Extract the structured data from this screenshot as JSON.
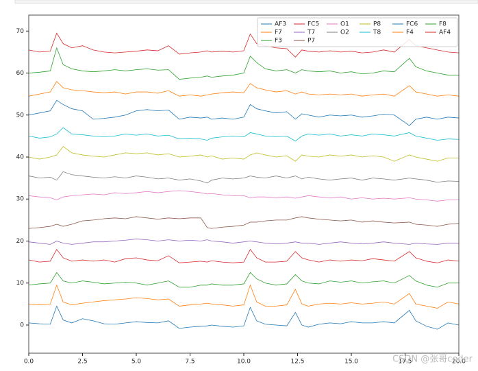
{
  "chart_data": {
    "type": "line",
    "x": [
      0,
      0.5,
      1,
      1.3,
      1.6,
      2,
      2.5,
      3,
      3.5,
      4,
      4.5,
      5,
      5.5,
      6,
      6.5,
      7,
      7.5,
      8,
      8.3,
      8.5,
      9,
      9.5,
      10,
      10.3,
      10.6,
      11,
      11.5,
      12,
      12.4,
      12.7,
      13,
      13.5,
      14,
      14.5,
      15,
      15.5,
      16,
      16.5,
      17,
      17.7,
      18,
      18.5,
      19,
      19.5,
      20
    ],
    "xlim": [
      0,
      20
    ],
    "ylim": [
      -6.7,
      73.8
    ],
    "xticks": [
      {
        "value": 0,
        "label": "0.0"
      },
      {
        "value": 2.5,
        "label": "2.5"
      },
      {
        "value": 5,
        "label": "5.0"
      },
      {
        "value": 7.5,
        "label": "7.5"
      },
      {
        "value": 10,
        "label": "10.0"
      },
      {
        "value": 12.5,
        "label": "12.5"
      },
      {
        "value": 15,
        "label": "15.0"
      },
      {
        "value": 17.5,
        "label": "17.5"
      },
      {
        "value": 20,
        "label": "20.0"
      }
    ],
    "yticks": [
      0,
      10,
      20,
      30,
      40,
      50,
      60,
      70
    ],
    "legend": "upper right",
    "series": [
      {
        "name": "AF3",
        "color": "#1f77b4",
        "values": [
          0.5,
          0.3,
          0.2,
          4.5,
          1.2,
          0.5,
          1.5,
          1.0,
          0.3,
          0.2,
          0.5,
          0.8,
          0.6,
          0.5,
          1.0,
          -0.8,
          -0.5,
          -0.3,
          -0.2,
          0.0,
          -0.3,
          -0.5,
          -0.2,
          4.2,
          1.0,
          0.2,
          0.0,
          -0.2,
          3.0,
          0.0,
          -0.5,
          0.2,
          0.5,
          0.3,
          0.8,
          0.5,
          0.5,
          0.8,
          0.5,
          3.5,
          1.0,
          -0.3,
          -1.0,
          0.5,
          0.0
        ]
      },
      {
        "name": "F7",
        "color": "#ff7f0e",
        "values": [
          5,
          4.8,
          5,
          9.5,
          5.5,
          4.8,
          5.2,
          5.5,
          5.8,
          6.0,
          6.2,
          6.5,
          6.3,
          6.0,
          6.2,
          4.5,
          4.8,
          5.0,
          5.2,
          5.0,
          4.8,
          4.5,
          4.8,
          9.5,
          5.5,
          4.5,
          4.5,
          4.8,
          8.5,
          5.0,
          4.5,
          5.0,
          5.2,
          5.0,
          5.3,
          5.0,
          5.2,
          5.5,
          5.0,
          7.5,
          5.0,
          4.5,
          4.0,
          5.5,
          5.0
        ]
      },
      {
        "name": "F3",
        "color": "#2ca02c",
        "values": [
          9.5,
          9.8,
          10,
          12.5,
          10.5,
          10,
          10.5,
          10.2,
          9.8,
          10,
          10.2,
          10,
          9.5,
          10,
          10.5,
          9.0,
          9.0,
          9.5,
          9.5,
          9.8,
          9.5,
          9.5,
          9.8,
          12.5,
          11,
          10,
          9.5,
          9.8,
          12,
          10.5,
          10,
          9.8,
          10.5,
          10.2,
          10.5,
          10,
          10.3,
          10.5,
          10,
          11.8,
          10.5,
          9.5,
          9,
          10,
          10
        ]
      },
      {
        "name": "FC5",
        "color": "#d62728",
        "values": [
          15.5,
          15.0,
          15.2,
          18.0,
          16.0,
          15.2,
          15.5,
          15.2,
          15.5,
          15.0,
          15.8,
          16.0,
          15.5,
          15.3,
          16.5,
          14.8,
          15.0,
          15.2,
          15.0,
          15.3,
          15.0,
          14.8,
          15.0,
          18.0,
          16.0,
          15.0,
          15.0,
          15.2,
          17.5,
          16.0,
          15.5,
          15.0,
          15.5,
          15.2,
          15.5,
          15.3,
          15.8,
          15.5,
          15.2,
          17.5,
          16.0,
          15.2,
          14.8,
          15.5,
          15.2
        ]
      },
      {
        "name": "T7",
        "color": "#9467bd",
        "values": [
          19.8,
          19.5,
          19.2,
          20.0,
          19.5,
          19.2,
          19.5,
          19.8,
          19.8,
          20.0,
          20.2,
          20.5,
          20.3,
          20.0,
          20.3,
          20.0,
          20.2,
          20.0,
          20.3,
          20.0,
          19.8,
          19.5,
          19.8,
          20.0,
          19.8,
          19.5,
          19.3,
          19.5,
          19.8,
          19.5,
          19.5,
          19.2,
          19.5,
          19.8,
          19.5,
          19.3,
          19.5,
          19.8,
          19.5,
          19.2,
          19.5,
          19.3,
          19.2,
          19.5,
          19.5
        ]
      },
      {
        "name": "P7",
        "color": "#8c564b",
        "values": [
          23.0,
          23.2,
          23.5,
          24.0,
          23.5,
          24.0,
          24.8,
          25.0,
          25.3,
          25.5,
          25.3,
          25.8,
          25.5,
          25.2,
          25.5,
          25.3,
          25.5,
          25.5,
          23.2,
          23.0,
          23.3,
          23.5,
          23.8,
          24.5,
          24.5,
          24.8,
          25.0,
          25.0,
          25.5,
          25.8,
          25.5,
          25.2,
          25.0,
          24.8,
          25.0,
          24.5,
          24.8,
          24.5,
          24.3,
          24.5,
          24.0,
          23.8,
          23.5,
          24.0,
          24.2
        ]
      },
      {
        "name": "O1",
        "color": "#e377c2",
        "values": [
          30.8,
          30.5,
          30.3,
          29.8,
          30.5,
          30.8,
          31.0,
          31.2,
          31.0,
          31.5,
          31.3,
          31.5,
          31.8,
          31.5,
          31.8,
          32.0,
          31.8,
          31.5,
          31.2,
          31.3,
          31.0,
          30.8,
          30.8,
          30.3,
          30.5,
          30.5,
          30.3,
          30.5,
          30.2,
          30.5,
          30.8,
          30.5,
          30.3,
          30.5,
          30.0,
          30.3,
          30.0,
          30.2,
          30.0,
          30.3,
          30.0,
          29.8,
          29.5,
          29.8,
          29.8
        ]
      },
      {
        "name": "O2",
        "color": "#7f7f7f",
        "values": [
          35.5,
          35.0,
          35.2,
          34.5,
          36.5,
          35.8,
          35.5,
          35.2,
          35.0,
          35.3,
          35.0,
          35.5,
          35.2,
          34.8,
          35.0,
          34.5,
          34.8,
          34.3,
          33.8,
          34.5,
          35.0,
          34.8,
          35.0,
          35.5,
          35.2,
          35.0,
          35.5,
          35.0,
          35.5,
          34.8,
          35.2,
          34.8,
          34.5,
          34.8,
          35.0,
          34.5,
          35.0,
          34.8,
          34.5,
          35.0,
          34.8,
          34.5,
          34.0,
          34.3,
          34.2
        ]
      },
      {
        "name": "P8",
        "color": "#bcbd22",
        "values": [
          40,
          39.5,
          40,
          40.5,
          42.5,
          41.0,
          40.5,
          40.2,
          40.0,
          40.5,
          41.0,
          40.8,
          41.0,
          40.5,
          40.8,
          40.0,
          40.2,
          40.5,
          40.0,
          40.3,
          39.5,
          39.8,
          39.5,
          40.5,
          41.0,
          40.5,
          40.0,
          40.3,
          39.0,
          40.5,
          40.2,
          40.0,
          40.5,
          40.2,
          40.5,
          40.0,
          40.3,
          40.0,
          39.0,
          40.5,
          40.0,
          39.5,
          39.0,
          39.8,
          39.8
        ]
      },
      {
        "name": "T8",
        "color": "#17becf",
        "values": [
          45.0,
          44.5,
          44.8,
          45.5,
          47.0,
          45.5,
          45.3,
          45.0,
          44.8,
          45.0,
          45.5,
          45.2,
          45.5,
          45.0,
          45.2,
          44.3,
          44.5,
          44.3,
          44.0,
          44.5,
          44.8,
          45.0,
          44.8,
          45.8,
          45.5,
          45.0,
          44.8,
          45.0,
          43.8,
          45.0,
          45.5,
          45.2,
          45.5,
          45.0,
          45.3,
          45.0,
          45.5,
          45.3,
          45.0,
          45.8,
          45.0,
          44.5,
          44.0,
          44.3,
          44.2
        ]
      },
      {
        "name": "FC6",
        "color": "#1f77b4",
        "values": [
          50.0,
          50.5,
          51.0,
          53.5,
          52.5,
          51.5,
          51.0,
          49.0,
          49.2,
          49.5,
          50.0,
          51.0,
          51.3,
          51.0,
          51.2,
          49.0,
          49.5,
          49.3,
          49.5,
          49.0,
          49.3,
          49.0,
          49.5,
          52.5,
          51.5,
          51.0,
          50.5,
          50.8,
          49.0,
          50.3,
          50.0,
          49.5,
          50.0,
          49.8,
          50.0,
          49.5,
          49.8,
          50.2,
          50.0,
          47.5,
          49.0,
          49.5,
          49.0,
          49.5,
          49.3
        ]
      },
      {
        "name": "F4",
        "color": "#ff7f0e",
        "values": [
          54.5,
          55.0,
          55.5,
          58.0,
          56.5,
          56.0,
          55.8,
          55.5,
          55.3,
          55.5,
          55.0,
          55.5,
          55.5,
          55.2,
          55.8,
          54.5,
          54.8,
          54.5,
          54.8,
          55.0,
          55.3,
          55.5,
          55.3,
          57.5,
          56.5,
          56.0,
          55.5,
          55.8,
          55.0,
          55.5,
          55.0,
          54.8,
          55.0,
          54.8,
          55.0,
          54.5,
          54.8,
          55.0,
          54.5,
          57.0,
          55.5,
          55.0,
          54.5,
          54.8,
          54.5
        ]
      },
      {
        "name": "F8",
        "color": "#2ca02c",
        "values": [
          60.0,
          60.2,
          60.5,
          66.0,
          62.0,
          61.0,
          60.5,
          60.3,
          60.5,
          60.8,
          60.5,
          60.8,
          61.0,
          60.7,
          60.8,
          58.5,
          58.8,
          59.0,
          59.3,
          59.0,
          59.3,
          59.5,
          60.0,
          64.0,
          62.5,
          61.0,
          60.5,
          60.8,
          60.0,
          60.8,
          60.5,
          60.3,
          60.5,
          60.0,
          60.3,
          59.8,
          60.0,
          60.5,
          60.3,
          63.5,
          61.5,
          60.5,
          60.0,
          59.5,
          59.5
        ]
      },
      {
        "name": "AF4",
        "color": "#d62728",
        "values": [
          65.5,
          65.0,
          65.2,
          69.5,
          67.0,
          66.0,
          66.5,
          65.5,
          65.0,
          64.8,
          65.0,
          65.2,
          65.5,
          65.3,
          66.5,
          64.5,
          64.8,
          65.0,
          65.3,
          65.0,
          65.2,
          65.0,
          65.3,
          69.3,
          67.0,
          66.5,
          66.0,
          65.8,
          63.8,
          65.5,
          65.2,
          65.0,
          65.3,
          65.0,
          65.2,
          64.8,
          65.0,
          65.5,
          65.0,
          68.0,
          66.5,
          66.0,
          65.5,
          65.0,
          64.8
        ]
      }
    ]
  },
  "watermark": "CSDN @张哥coder"
}
